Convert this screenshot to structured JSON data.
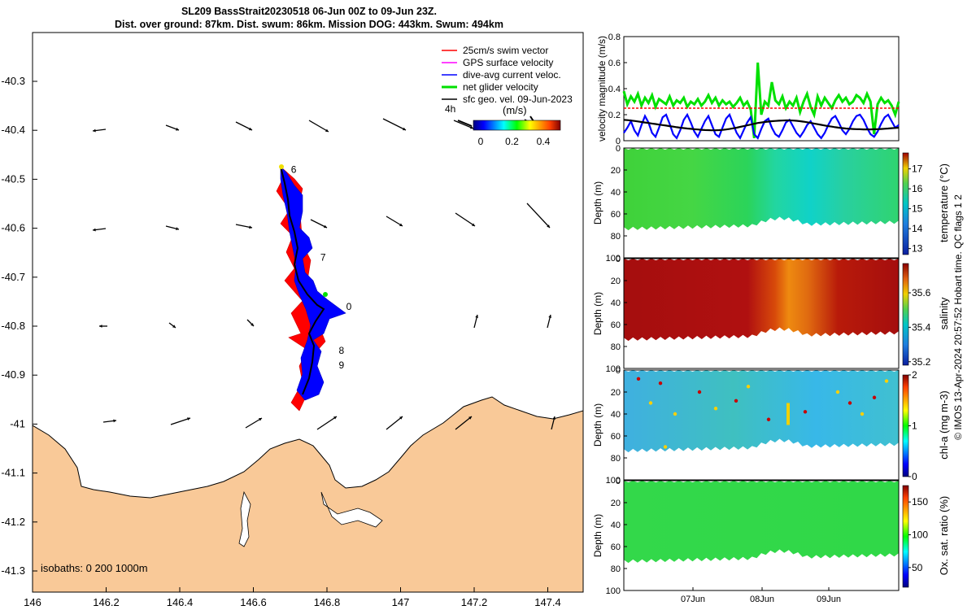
{
  "title": {
    "line1": "SL209 BassStrait20230518 06-Jun 00Z to 09-Jun 23Z.",
    "line2": "Dist. over ground: 87km. Dist. swum: 86km. Mission DOG: 443km. Swum: 494km"
  },
  "colors": {
    "land": "#f9c998",
    "swim": "#ff0000",
    "gps": "#ff00ff",
    "diveavg": "#0000ff",
    "net": "#00e000",
    "geo": "#000000"
  },
  "map": {
    "x_ticks": [
      "146",
      "146.2",
      "146.4",
      "146.6",
      "146.8",
      "147",
      "147.2",
      "147.4"
    ],
    "y_ticks": [
      "-40.3",
      "-40.4",
      "-40.5",
      "-40.6",
      "-40.7",
      "-40.8",
      "-40.9",
      "-41",
      "-41.1",
      "-41.2",
      "-41.3"
    ],
    "isobaths_label": "isobaths: 0   200  1000m",
    "legend": [
      {
        "label": "25cm/s swim vector",
        "color": "#ff0000"
      },
      {
        "label": "GPS surface velocity",
        "color": "#ff00ff"
      },
      {
        "label": "dive-avg current veloc.",
        "color": "#0000ff"
      },
      {
        "label": "net glider velocity",
        "color": "#00e000"
      },
      {
        "label": "sfc geo. vel. 09-Jun-2023",
        "color": "#000000"
      }
    ],
    "vector_scale_label": "4h",
    "colorbar_label": "(m/s)",
    "colorbar_ticks": [
      "0",
      "0.2",
      "0.4"
    ],
    "day_labels": [
      {
        "text": "6",
        "lon": 146.68,
        "lat": -40.48
      },
      {
        "text": "7",
        "lon": 146.76,
        "lat": -40.66
      },
      {
        "text": "0",
        "lon": 146.83,
        "lat": -40.76
      },
      {
        "text": "8",
        "lon": 146.81,
        "lat": -40.85
      },
      {
        "text": "9",
        "lon": 146.81,
        "lat": -40.88
      }
    ]
  },
  "chart_data": [
    {
      "type": "line",
      "title": "",
      "ylabel": "velocity magnitude (m/s)",
      "ylim": [
        0,
        0.8
      ],
      "yticks": [
        "0",
        "0.2",
        "0.4",
        "0.6",
        "0.8"
      ],
      "series": [
        {
          "name": "",
          "color": "#00e000",
          "values": [
            0.38,
            0.28,
            0.34,
            0.3,
            0.36,
            0.27,
            0.33,
            0.29,
            0.35,
            0.26,
            0.32,
            0.3,
            0.28,
            0.34,
            0.27,
            0.31,
            0.29,
            0.33,
            0.26,
            0.3,
            0.28,
            0.32,
            0.27,
            0.3,
            0.35,
            0.29,
            0.33,
            0.27,
            0.31,
            0.28,
            0.3,
            0.26,
            0.29,
            0.33,
            0.27,
            0.3,
            0.24,
            0.02,
            0.6,
            0.2,
            0.3,
            0.27,
            0.45,
            0.31,
            0.28,
            0.34,
            0.25,
            0.3,
            0.27,
            0.33,
            0.22,
            0.3,
            0.36,
            0.26,
            0.2,
            0.34,
            0.27,
            0.33,
            0.29,
            0.25,
            0.31,
            0.35,
            0.3,
            0.33,
            0.28,
            0.3,
            0.35,
            0.33,
            0.29,
            0.36,
            0.3,
            0.05,
            0.28,
            0.33,
            0.29,
            0.31,
            0.27,
            0.2,
            0.3
          ]
        },
        {
          "name": "",
          "color": "#ff0000",
          "values": [
            0.25,
            0.25,
            0.25,
            0.25,
            0.25,
            0.25,
            0.25,
            0.25,
            0.25,
            0.25,
            0.25,
            0.25,
            0.25,
            0.25,
            0.25,
            0.25,
            0.25,
            0.25,
            0.25,
            0.25,
            0.25,
            0.25,
            0.25,
            0.25,
            0.25,
            0.25,
            0.25,
            0.25,
            0.25,
            0.25,
            0.25,
            0.25,
            0.25,
            0.25,
            0.25,
            0.25,
            0.25,
            0.25,
            0.25,
            0.25,
            0.25,
            0.25,
            0.25,
            0.25,
            0.25,
            0.25,
            0.25,
            0.25,
            0.25,
            0.25,
            0.25,
            0.25,
            0.25,
            0.25,
            0.25,
            0.25,
            0.25,
            0.25,
            0.25,
            0.25,
            0.25,
            0.25,
            0.25,
            0.25,
            0.25,
            0.25,
            0.25,
            0.25,
            0.25,
            0.25,
            0.25,
            0.25,
            0.25,
            0.25,
            0.25,
            0.25,
            0.25,
            0.25,
            0.25
          ]
        },
        {
          "name": "",
          "color": "#0000ff",
          "values": [
            0.06,
            0.1,
            0.15,
            0.08,
            0.04,
            0.12,
            0.19,
            0.14,
            0.06,
            0.03,
            0.1,
            0.18,
            0.2,
            0.13,
            0.05,
            0.02,
            0.08,
            0.16,
            0.2,
            0.14,
            0.07,
            0.03,
            0.09,
            0.15,
            0.19,
            0.12,
            0.05,
            0.03,
            0.1,
            0.17,
            0.2,
            0.13,
            0.06,
            0.02,
            0.08,
            0.14,
            0.18,
            0.05,
            0.02,
            0.09,
            0.15,
            0.17,
            0.1,
            0.05,
            0.03,
            0.08,
            0.14,
            0.16,
            0.11,
            0.06,
            0.03,
            0.07,
            0.12,
            0.15,
            0.1,
            0.05,
            0.02,
            0.06,
            0.12,
            0.17,
            0.19,
            0.14,
            0.08,
            0.05,
            0.09,
            0.15,
            0.19,
            0.2,
            0.16,
            0.1,
            0.05,
            0.03,
            0.07,
            0.13,
            0.18,
            0.2,
            0.15,
            0.1,
            0.12
          ]
        },
        {
          "name": "",
          "color": "#000000",
          "values": [
            0.16,
            0.158,
            0.155,
            0.152,
            0.148,
            0.144,
            0.14,
            0.136,
            0.132,
            0.128,
            0.124,
            0.12,
            0.116,
            0.112,
            0.108,
            0.104,
            0.1,
            0.097,
            0.094,
            0.091,
            0.088,
            0.086,
            0.084,
            0.082,
            0.081,
            0.08,
            0.08,
            0.081,
            0.083,
            0.086,
            0.09,
            0.095,
            0.1,
            0.106,
            0.112,
            0.118,
            0.124,
            0.13,
            0.136,
            0.14,
            0.144,
            0.147,
            0.15,
            0.152,
            0.154,
            0.155,
            0.156,
            0.156,
            0.155,
            0.153,
            0.15,
            0.146,
            0.142,
            0.137,
            0.132,
            0.127,
            0.122,
            0.117,
            0.112,
            0.108,
            0.104,
            0.1,
            0.097,
            0.094,
            0.092,
            0.09,
            0.089,
            0.088,
            0.087,
            0.087,
            0.087,
            0.088,
            0.089,
            0.09,
            0.092,
            0.094,
            0.096,
            0.098,
            0.1
          ]
        }
      ]
    },
    {
      "type": "heatmap",
      "ylabel": "Depth (m)",
      "ylim": [
        100,
        0
      ],
      "yticks": [
        "0",
        "20",
        "40",
        "60",
        "80",
        "100"
      ],
      "colorbar_label": "temperature (°C)",
      "colorbar_ticks": [
        "13",
        "14",
        "15",
        "16",
        "17"
      ]
    },
    {
      "type": "heatmap",
      "ylabel": "Depth (m)",
      "ylim": [
        100,
        0
      ],
      "yticks": [
        "0",
        "20",
        "40",
        "60",
        "80",
        "100"
      ],
      "colorbar_label": "salinity",
      "colorbar_ticks": [
        "35.2",
        "35.4",
        "35.6"
      ]
    },
    {
      "type": "heatmap",
      "ylabel": "Depth (m)",
      "ylim": [
        100,
        0
      ],
      "yticks": [
        "0",
        "20",
        "40",
        "60",
        "80",
        "100"
      ],
      "colorbar_label": "chl-a (mg m-3)",
      "colorbar_ticks": [
        "0",
        "1",
        "2"
      ]
    },
    {
      "type": "heatmap",
      "ylabel": "Depth (m)",
      "ylim": [
        100,
        0
      ],
      "yticks": [
        "0",
        "20",
        "40",
        "60",
        "80",
        "100"
      ],
      "colorbar_label": "Ox. sat. ratio (%)",
      "colorbar_ticks": [
        "50",
        "100",
        "150"
      ],
      "x_ticks": [
        "07Jun",
        "08Jun",
        "09Jun"
      ]
    }
  ],
  "side_text": "© IMOS 13-Apr-2024 20:57:52 Hobart time. QC flags 1  2"
}
